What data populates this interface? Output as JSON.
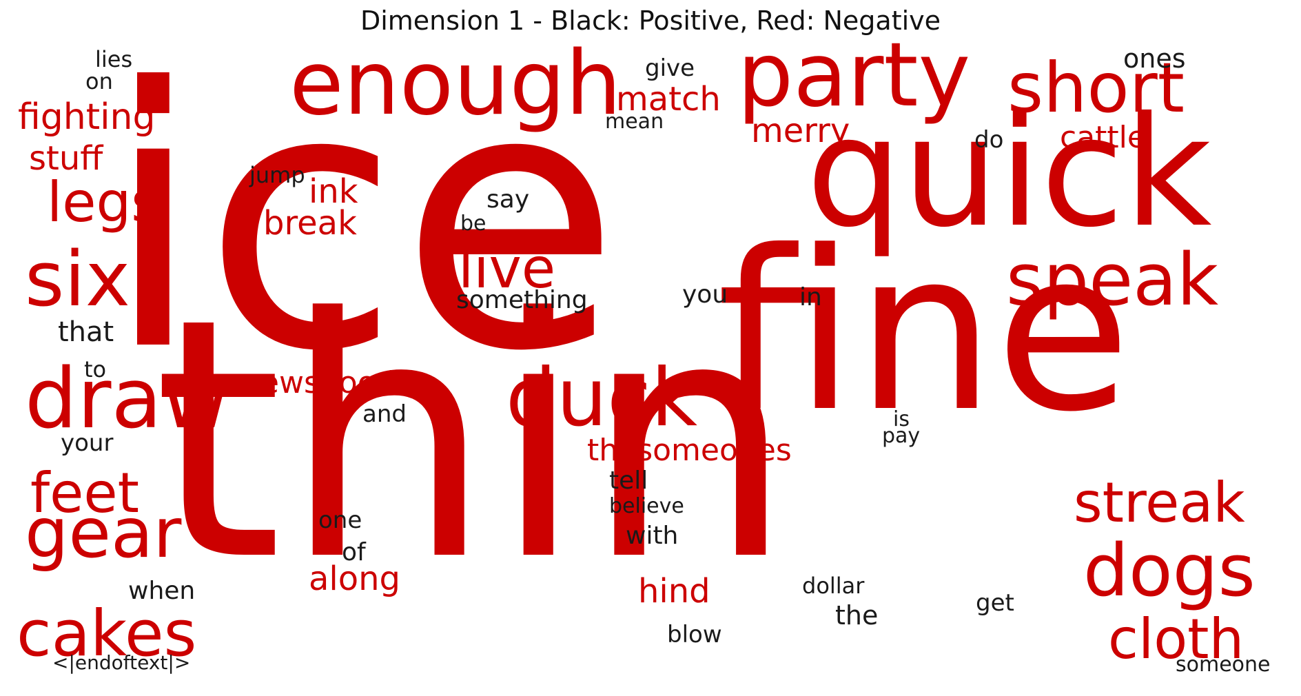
{
  "title": "Dimension 1 - Black: Positive, Red: Negative",
  "colors": {
    "positive": "#1a1a1a",
    "negative": "#cc0000",
    "background": "#ffffff"
  },
  "words": [
    {
      "text": "ice",
      "sentiment": "negative"
    },
    {
      "text": "thin",
      "sentiment": "negative"
    },
    {
      "text": "fine",
      "sentiment": "negative"
    },
    {
      "text": "quick",
      "sentiment": "negative"
    },
    {
      "text": "enough",
      "sentiment": "negative"
    },
    {
      "text": "party",
      "sentiment": "negative"
    },
    {
      "text": "short",
      "sentiment": "negative"
    },
    {
      "text": "six",
      "sentiment": "negative"
    },
    {
      "text": "draw",
      "sentiment": "negative"
    },
    {
      "text": "duck",
      "sentiment": "negative"
    },
    {
      "text": "speak",
      "sentiment": "negative"
    },
    {
      "text": "dogs",
      "sentiment": "negative"
    },
    {
      "text": "gear",
      "sentiment": "negative"
    },
    {
      "text": "cakes",
      "sentiment": "negative"
    },
    {
      "text": "cloth",
      "sentiment": "negative"
    },
    {
      "text": "streak",
      "sentiment": "negative"
    },
    {
      "text": "feet",
      "sentiment": "negative"
    },
    {
      "text": "legs",
      "sentiment": "negative"
    },
    {
      "text": "alive",
      "sentiment": "negative"
    },
    {
      "text": "fighting",
      "sentiment": "negative"
    },
    {
      "text": "stuff",
      "sentiment": "negative"
    },
    {
      "text": "ink",
      "sentiment": "negative"
    },
    {
      "text": "break",
      "sentiment": "negative"
    },
    {
      "text": "match",
      "sentiment": "negative"
    },
    {
      "text": "merry",
      "sentiment": "negative"
    },
    {
      "text": "cattle",
      "sentiment": "negative"
    },
    {
      "text": "newsgood",
      "sentiment": "negative"
    },
    {
      "text": "thesomeones",
      "sentiment": "negative"
    },
    {
      "text": "along",
      "sentiment": "negative"
    },
    {
      "text": "hind",
      "sentiment": "negative"
    },
    {
      "text": "lies",
      "sentiment": "positive"
    },
    {
      "text": "on",
      "sentiment": "positive"
    },
    {
      "text": "give",
      "sentiment": "positive"
    },
    {
      "text": "ones",
      "sentiment": "positive"
    },
    {
      "text": "mean",
      "sentiment": "positive"
    },
    {
      "text": "do",
      "sentiment": "positive"
    },
    {
      "text": "jump",
      "sentiment": "positive"
    },
    {
      "text": "say",
      "sentiment": "positive"
    },
    {
      "text": "be",
      "sentiment": "positive"
    },
    {
      "text": "something",
      "sentiment": "positive"
    },
    {
      "text": "you",
      "sentiment": "positive"
    },
    {
      "text": "in",
      "sentiment": "positive"
    },
    {
      "text": "that",
      "sentiment": "positive"
    },
    {
      "text": "to",
      "sentiment": "positive"
    },
    {
      "text": "and",
      "sentiment": "positive"
    },
    {
      "text": "your",
      "sentiment": "positive"
    },
    {
      "text": "is",
      "sentiment": "positive"
    },
    {
      "text": "pay",
      "sentiment": "positive"
    },
    {
      "text": "tell",
      "sentiment": "positive"
    },
    {
      "text": "believe",
      "sentiment": "positive"
    },
    {
      "text": "one",
      "sentiment": "positive"
    },
    {
      "text": "with",
      "sentiment": "positive"
    },
    {
      "text": "of",
      "sentiment": "positive"
    },
    {
      "text": "when",
      "sentiment": "positive"
    },
    {
      "text": "dollar",
      "sentiment": "positive"
    },
    {
      "text": "get",
      "sentiment": "positive"
    },
    {
      "text": "the",
      "sentiment": "positive"
    },
    {
      "text": "blow",
      "sentiment": "positive"
    },
    {
      "text": "<|endoftext|>",
      "sentiment": "positive"
    },
    {
      "text": "someone",
      "sentiment": "positive"
    }
  ]
}
